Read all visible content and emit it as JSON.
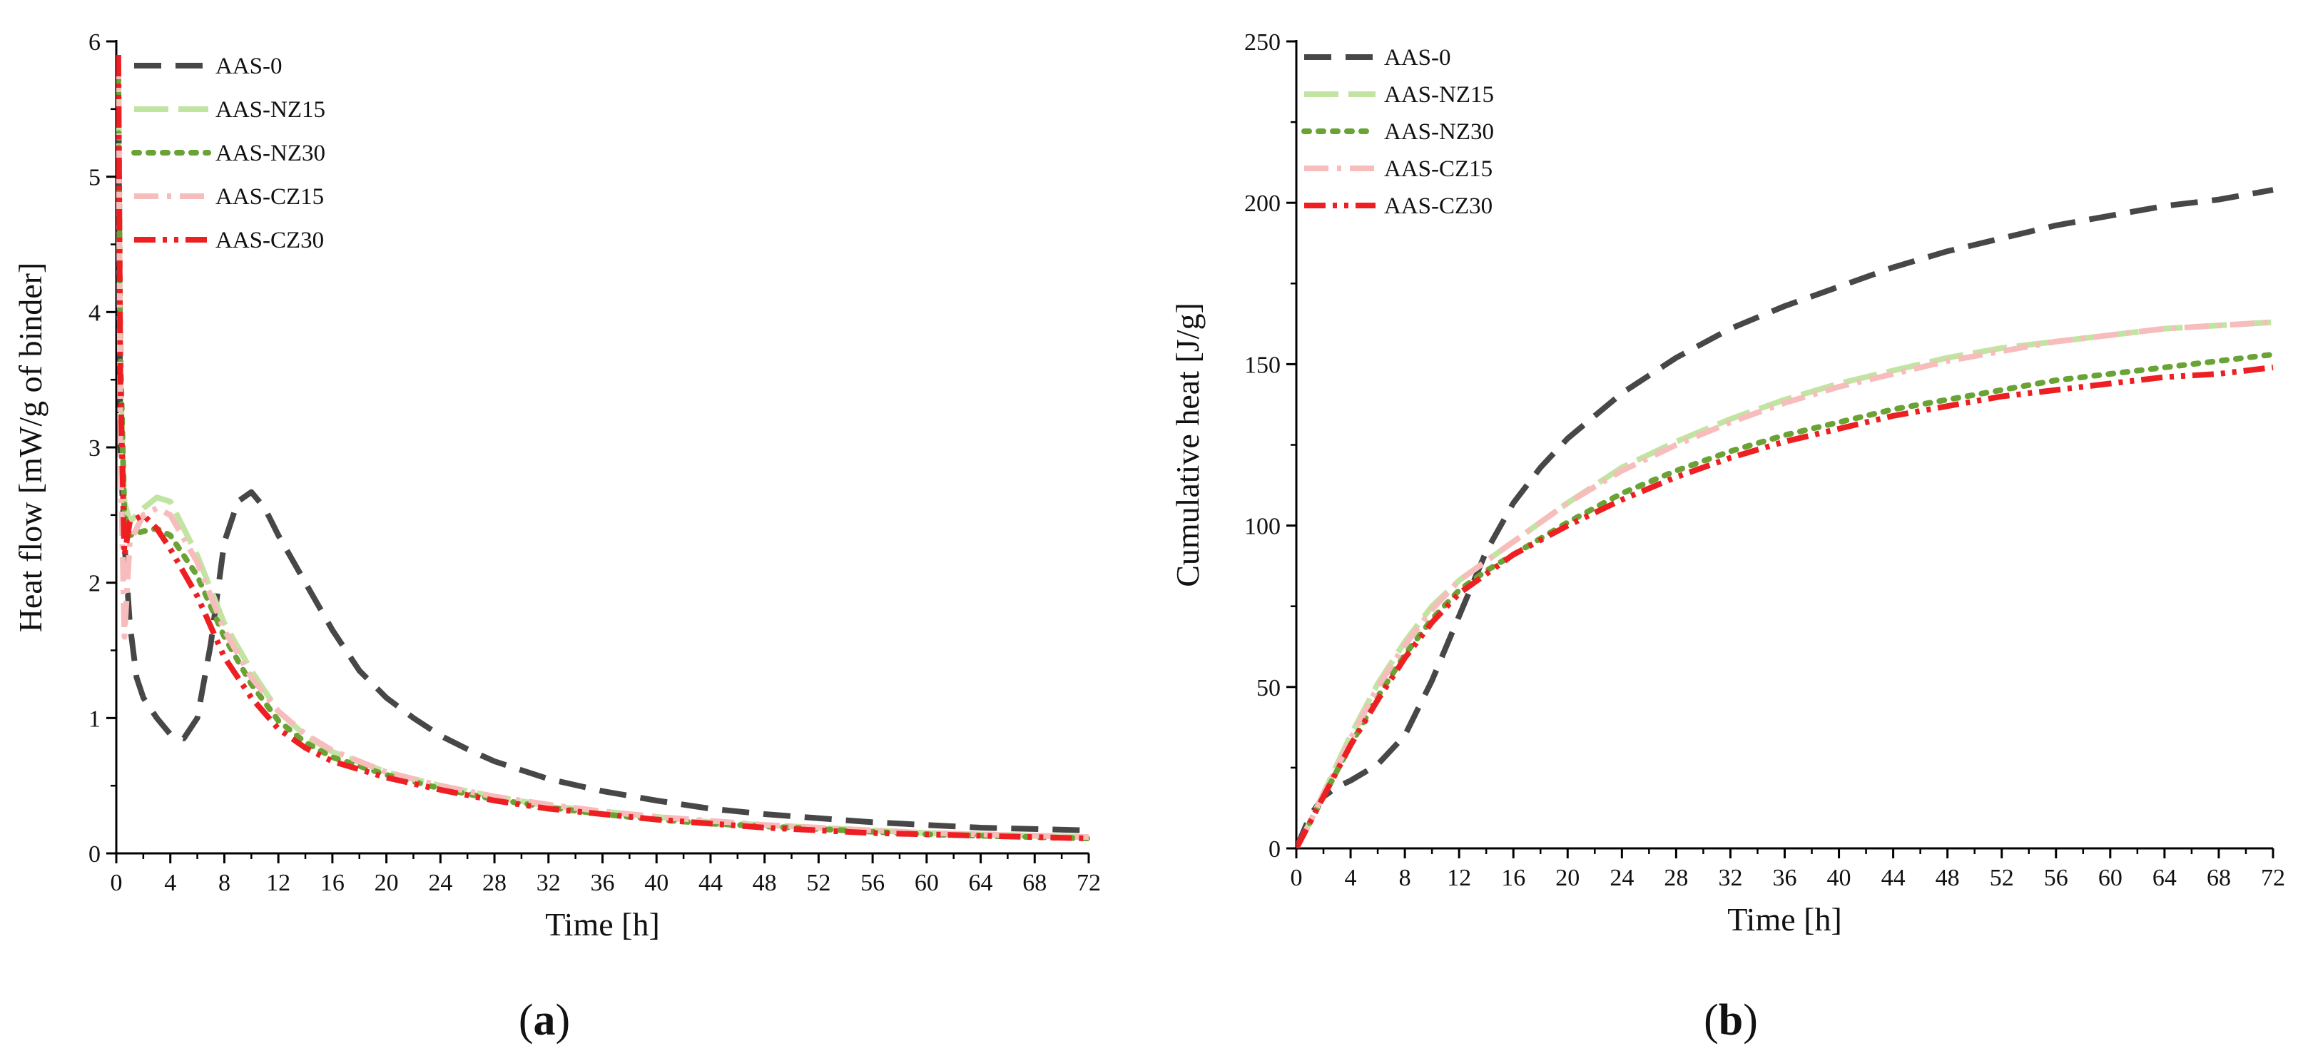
{
  "colors": {
    "AAS-0": "#474747",
    "AAS-NZ15": "#c2e4a2",
    "AAS-NZ30": "#6aa335",
    "AAS-CZ15": "#f7bcbc",
    "AAS-CZ30": "#ee1f23"
  },
  "chart_data": [
    {
      "type": "line",
      "panel_caption": {
        "open": "(",
        "letter": "a",
        "close": ")"
      },
      "xlabel": "Time [h]",
      "ylabel": "Heat flow [mW/g of binder]",
      "xlim": [
        0,
        72
      ],
      "ylim": [
        0,
        6
      ],
      "xticks": [
        0,
        4,
        8,
        12,
        16,
        20,
        24,
        28,
        32,
        36,
        40,
        44,
        48,
        52,
        56,
        60,
        64,
        68,
        72
      ],
      "yticks": [
        0,
        1,
        2,
        3,
        4,
        5,
        6
      ],
      "legend_position": "top-left",
      "series": [
        {
          "name": "AAS-0",
          "style": "dash",
          "x": [
            0.15,
            0.3,
            0.6,
            1,
            1.5,
            2,
            3,
            4,
            5,
            6,
            7,
            8,
            9,
            10,
            11,
            12,
            14,
            16,
            18,
            20,
            22,
            24,
            26,
            28,
            32,
            36,
            40,
            44,
            48,
            52,
            56,
            60,
            64,
            68,
            72
          ],
          "y": [
            5.9,
            3.0,
            2.3,
            1.7,
            1.3,
            1.15,
            1.0,
            0.88,
            0.85,
            1.0,
            1.55,
            2.3,
            2.6,
            2.67,
            2.55,
            2.35,
            2.0,
            1.65,
            1.35,
            1.15,
            1.0,
            0.87,
            0.77,
            0.68,
            0.55,
            0.46,
            0.39,
            0.33,
            0.29,
            0.26,
            0.23,
            0.21,
            0.19,
            0.18,
            0.17
          ]
        },
        {
          "name": "AAS-NZ15",
          "style": "longdash",
          "x": [
            0.15,
            0.3,
            0.6,
            1,
            2,
            3,
            4,
            6,
            8,
            10,
            12,
            14,
            16,
            20,
            24,
            28,
            32,
            36,
            40,
            44,
            48,
            52,
            56,
            60,
            64,
            68,
            72
          ],
          "y": [
            5.9,
            3.5,
            2.6,
            2.45,
            2.55,
            2.63,
            2.6,
            2.2,
            1.7,
            1.35,
            1.05,
            0.87,
            0.75,
            0.6,
            0.5,
            0.42,
            0.35,
            0.31,
            0.27,
            0.23,
            0.21,
            0.19,
            0.17,
            0.15,
            0.14,
            0.13,
            0.12
          ]
        },
        {
          "name": "AAS-NZ30",
          "style": "dot",
          "x": [
            0.15,
            0.3,
            0.6,
            1,
            2,
            3,
            4,
            6,
            8,
            10,
            12,
            14,
            16,
            20,
            24,
            28,
            32,
            36,
            40,
            44,
            48,
            52,
            56,
            60,
            64,
            68,
            72
          ],
          "y": [
            5.85,
            3.7,
            2.5,
            2.35,
            2.38,
            2.4,
            2.35,
            2.05,
            1.6,
            1.25,
            0.98,
            0.82,
            0.71,
            0.58,
            0.48,
            0.4,
            0.34,
            0.29,
            0.25,
            0.22,
            0.2,
            0.18,
            0.16,
            0.14,
            0.13,
            0.12,
            0.11
          ]
        },
        {
          "name": "AAS-CZ15",
          "style": "dashdot",
          "x": [
            0.15,
            0.3,
            0.6,
            1,
            2,
            3,
            4,
            6,
            8,
            10,
            12,
            14,
            16,
            20,
            24,
            28,
            32,
            36,
            40,
            44,
            48,
            52,
            56,
            60,
            64,
            68,
            72
          ],
          "y": [
            5.9,
            3.0,
            1.6,
            2.3,
            2.5,
            2.55,
            2.5,
            2.15,
            1.65,
            1.3,
            1.05,
            0.88,
            0.76,
            0.6,
            0.5,
            0.42,
            0.36,
            0.31,
            0.27,
            0.24,
            0.21,
            0.19,
            0.17,
            0.15,
            0.14,
            0.13,
            0.12
          ]
        },
        {
          "name": "AAS-CZ30",
          "style": "dashdotdot",
          "x": [
            0.15,
            0.3,
            0.6,
            1,
            2,
            3,
            4,
            6,
            8,
            10,
            12,
            14,
            16,
            20,
            24,
            28,
            32,
            36,
            40,
            44,
            48,
            52,
            56,
            60,
            64,
            68,
            72
          ],
          "y": [
            5.9,
            3.5,
            2.2,
            2.45,
            2.5,
            2.4,
            2.25,
            1.9,
            1.45,
            1.15,
            0.92,
            0.78,
            0.68,
            0.56,
            0.47,
            0.39,
            0.33,
            0.29,
            0.25,
            0.22,
            0.19,
            0.17,
            0.15,
            0.14,
            0.13,
            0.12,
            0.11
          ]
        }
      ]
    },
    {
      "type": "line",
      "panel_caption": {
        "open": "(",
        "letter": "b",
        "close": ")"
      },
      "xlabel": "Time [h]",
      "ylabel": "Cumulative heat [J/g]",
      "xlim": [
        0,
        72
      ],
      "ylim": [
        0,
        250
      ],
      "xticks": [
        0,
        4,
        8,
        12,
        16,
        20,
        24,
        28,
        32,
        36,
        40,
        44,
        48,
        52,
        56,
        60,
        64,
        68,
        72
      ],
      "yticks": [
        0,
        50,
        100,
        150,
        200,
        250
      ],
      "legend_position": "top-left",
      "series": [
        {
          "name": "AAS-0",
          "style": "dash",
          "x": [
            0,
            1,
            2,
            3,
            4,
            6,
            8,
            10,
            12,
            14,
            16,
            18,
            20,
            24,
            28,
            32,
            36,
            40,
            44,
            48,
            52,
            56,
            60,
            64,
            68,
            72
          ],
          "y": [
            0,
            10,
            16,
            19,
            21,
            26,
            35,
            52,
            72,
            92,
            107,
            118,
            127,
            141,
            152,
            161,
            168,
            174,
            180,
            185,
            189,
            193,
            196,
            199,
            201,
            204
          ]
        },
        {
          "name": "AAS-NZ15",
          "style": "longdash",
          "x": [
            0,
            1,
            2,
            3,
            4,
            6,
            8,
            10,
            12,
            14,
            16,
            20,
            24,
            28,
            32,
            36,
            40,
            44,
            48,
            52,
            56,
            60,
            64,
            68,
            72
          ],
          "y": [
            0,
            8,
            17,
            26,
            35,
            51,
            64,
            75,
            83,
            89,
            95,
            107,
            118,
            126,
            133,
            139,
            144,
            148,
            152,
            155,
            157,
            159,
            161,
            162,
            163
          ]
        },
        {
          "name": "AAS-NZ30",
          "style": "dot",
          "x": [
            0,
            1,
            2,
            3,
            4,
            6,
            8,
            10,
            12,
            14,
            16,
            20,
            24,
            28,
            32,
            36,
            40,
            44,
            48,
            52,
            56,
            60,
            64,
            68,
            72
          ],
          "y": [
            0,
            8,
            16,
            24,
            32,
            47,
            60,
            71,
            80,
            86,
            91,
            101,
            110,
            117,
            123,
            128,
            132,
            136,
            139,
            142,
            145,
            147,
            149,
            151,
            153
          ]
        },
        {
          "name": "AAS-CZ15",
          "style": "dashdot",
          "x": [
            0,
            1,
            2,
            3,
            4,
            6,
            8,
            10,
            12,
            14,
            16,
            20,
            24,
            28,
            32,
            36,
            40,
            44,
            48,
            52,
            56,
            60,
            64,
            68,
            72
          ],
          "y": [
            0,
            8,
            17,
            25,
            34,
            50,
            63,
            74,
            83,
            89,
            95,
            107,
            117,
            125,
            132,
            138,
            143,
            147,
            151,
            154,
            157,
            159,
            161,
            162,
            163
          ]
        },
        {
          "name": "AAS-CZ30",
          "style": "dashdotdot",
          "x": [
            0,
            1,
            2,
            3,
            4,
            6,
            8,
            10,
            12,
            14,
            16,
            20,
            24,
            28,
            32,
            36,
            40,
            44,
            48,
            52,
            56,
            60,
            64,
            68,
            72
          ],
          "y": [
            0,
            8,
            16,
            24,
            32,
            46,
            59,
            70,
            79,
            85,
            91,
            100,
            108,
            115,
            121,
            126,
            130,
            134,
            137,
            140,
            142,
            144,
            146,
            147,
            149
          ]
        }
      ]
    }
  ]
}
